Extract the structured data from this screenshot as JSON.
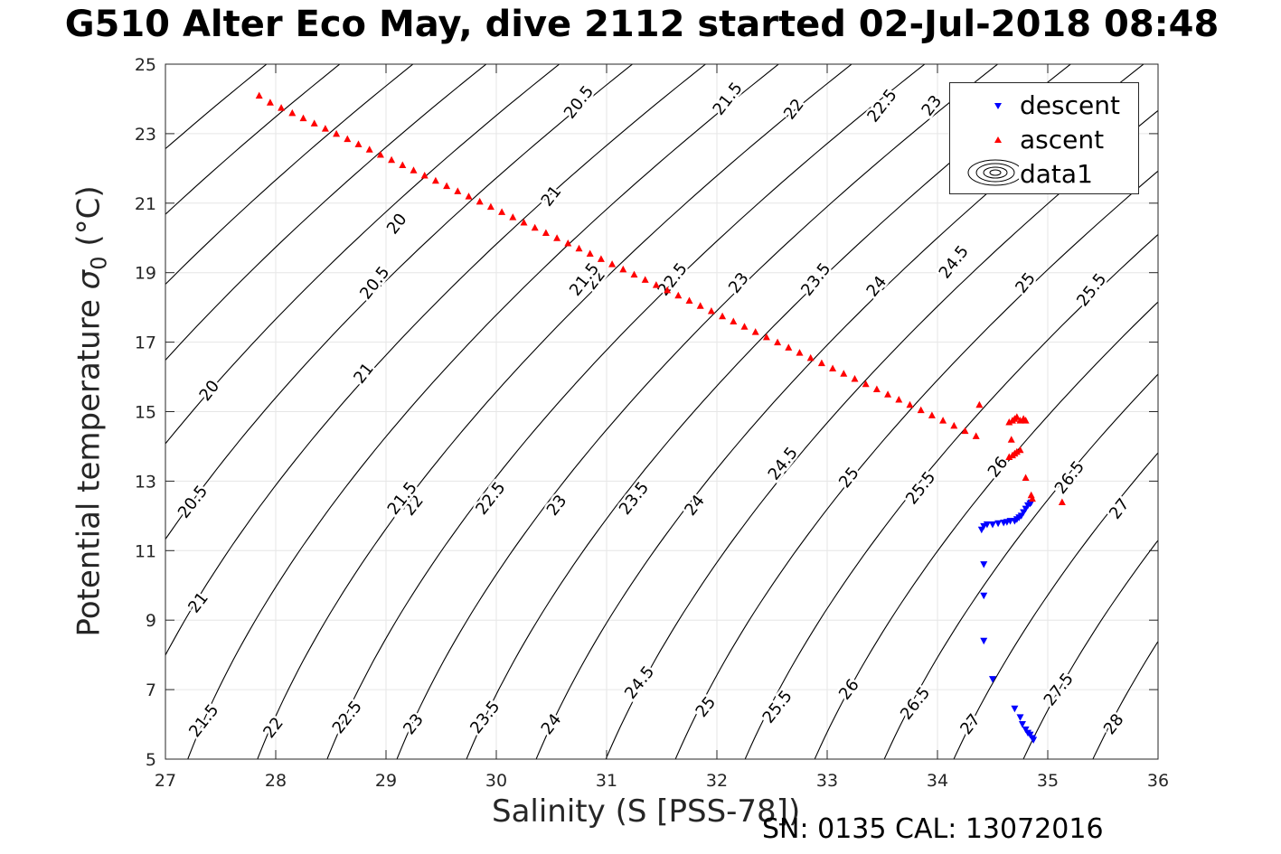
{
  "title": "G510 Alter Eco May, dive 2112 started 02-Jul-2018 08:48",
  "footer": "SN: 0135  CAL: 13072016",
  "colors": {
    "descent": "#0000ff",
    "ascent": "#ff0000",
    "contour": "#000000",
    "grid": "#e6e6e6"
  },
  "chart_data": {
    "type": "scatter",
    "xlabel": "Salinity (S [PSS-78])",
    "ylabel": {
      "main": "Potential temperature ",
      "sigma": "σ",
      "sub": "0",
      "unit": " (°C)"
    },
    "xlim": [
      27,
      36
    ],
    "ylim": [
      5,
      25
    ],
    "xticks": [
      27,
      28,
      29,
      30,
      31,
      32,
      33,
      34,
      35,
      36
    ],
    "yticks": [
      5,
      7,
      9,
      11,
      13,
      15,
      17,
      19,
      21,
      23,
      25
    ],
    "grid": true,
    "legend_position": "top-right",
    "legend": [
      "descent",
      "ascent",
      "data1"
    ],
    "contour_levels": [
      "20",
      "20.5",
      "21",
      "21.5",
      "22",
      "22.5",
      "23",
      "23.5",
      "24",
      "24.5",
      "25",
      "25.5",
      "26",
      "26.5",
      "27",
      "27.5",
      "28"
    ],
    "contour_label_positions": {
      "20": [
        [
          27.4,
          15.6
        ],
        [
          29.1,
          20.4
        ]
      ],
      "20.5": [
        [
          27.25,
          12.4
        ],
        [
          28.9,
          18.7
        ],
        [
          30.75,
          23.9
        ]
      ],
      "21": [
        [
          27.3,
          9.5
        ],
        [
          28.8,
          16.1
        ],
        [
          30.5,
          21.2
        ]
      ],
      "21.5": [
        [
          27.35,
          6.1
        ],
        [
          29.15,
          12.5
        ],
        [
          30.8,
          18.8
        ],
        [
          32.1,
          24.0
        ]
      ],
      "22": [
        [
          27.98,
          5.9
        ],
        [
          29.25,
          12.3
        ],
        [
          30.9,
          18.8
        ],
        [
          32.7,
          23.7
        ]
      ],
      "22.5": [
        [
          28.65,
          6.2
        ],
        [
          29.95,
          12.5
        ],
        [
          31.6,
          18.8
        ],
        [
          33.5,
          23.8
        ]
      ],
      "23": [
        [
          29.25,
          6.0
        ],
        [
          30.55,
          12.3
        ],
        [
          32.2,
          18.7
        ],
        [
          33.95,
          23.8
        ]
      ],
      "23.5": [
        [
          29.9,
          6.2
        ],
        [
          31.25,
          12.5
        ],
        [
          32.9,
          18.8
        ]
      ],
      "24": [
        [
          30.5,
          6.0
        ],
        [
          31.8,
          12.3
        ],
        [
          33.45,
          18.6
        ]
      ],
      "24.5": [
        [
          31.3,
          7.2
        ],
        [
          32.6,
          13.5
        ],
        [
          34.15,
          19.3
        ]
      ],
      "25": [
        [
          31.9,
          6.5
        ],
        [
          33.2,
          13.1
        ],
        [
          34.8,
          18.7
        ]
      ],
      "25.5": [
        [
          32.55,
          6.5
        ],
        [
          33.85,
          12.8
        ],
        [
          35.4,
          18.5
        ]
      ],
      "26": [
        [
          33.2,
          7.0
        ],
        [
          34.55,
          13.4
        ]
      ],
      "26.5": [
        [
          33.8,
          6.6
        ],
        [
          35.2,
          13.1
        ]
      ],
      "27": [
        [
          34.3,
          6.0
        ],
        [
          35.65,
          12.2
        ]
      ],
      "27.5": [
        [
          35.1,
          7.0
        ]
      ],
      "28": [
        [
          35.6,
          6.0
        ]
      ]
    },
    "series": [
      {
        "name": "descent",
        "marker": "triangle-down",
        "x": [
          34.4,
          34.42,
          34.45,
          34.5,
          34.55,
          34.6,
          34.63,
          34.66,
          34.7,
          34.72,
          34.74,
          34.76,
          34.78,
          34.8,
          34.82,
          34.84,
          34.85,
          34.42,
          34.42,
          34.42,
          34.5,
          34.7,
          34.75,
          34.77,
          34.8,
          34.82,
          34.84,
          34.86,
          34.87
        ],
        "y": [
          11.6,
          11.7,
          11.75,
          11.75,
          11.78,
          11.8,
          11.82,
          11.85,
          11.85,
          11.9,
          11.95,
          12.0,
          12.1,
          12.2,
          12.3,
          12.35,
          12.38,
          10.6,
          9.7,
          8.4,
          7.3,
          6.45,
          6.2,
          6.0,
          5.85,
          5.75,
          5.7,
          5.6,
          5.55
        ]
      },
      {
        "name": "ascent",
        "marker": "triangle-up",
        "x": [
          27.85,
          27.95,
          28.05,
          28.15,
          28.25,
          28.35,
          28.45,
          28.55,
          28.65,
          28.75,
          28.85,
          28.95,
          29.05,
          29.15,
          29.25,
          29.35,
          29.45,
          29.55,
          29.65,
          29.75,
          29.85,
          29.95,
          30.05,
          30.15,
          30.25,
          30.35,
          30.45,
          30.55,
          30.65,
          30.75,
          30.85,
          30.95,
          31.05,
          31.15,
          31.25,
          31.35,
          31.45,
          31.55,
          31.65,
          31.75,
          31.85,
          31.95,
          32.05,
          32.15,
          32.25,
          32.35,
          32.45,
          32.55,
          32.65,
          32.75,
          32.85,
          32.95,
          33.05,
          33.15,
          33.25,
          33.35,
          33.45,
          33.55,
          33.65,
          33.75,
          33.85,
          33.95,
          34.05,
          34.15,
          34.25,
          34.35,
          34.38,
          34.65,
          34.68,
          34.7,
          34.72,
          34.75,
          34.78,
          34.8,
          34.67,
          34.65,
          34.68,
          34.7,
          34.72,
          34.75,
          34.8,
          34.85,
          34.86,
          35.13
        ],
        "y": [
          24.1,
          23.9,
          23.75,
          23.6,
          23.45,
          23.3,
          23.15,
          23.0,
          22.85,
          22.7,
          22.55,
          22.4,
          22.25,
          22.1,
          21.95,
          21.8,
          21.65,
          21.5,
          21.35,
          21.2,
          21.05,
          20.9,
          20.75,
          20.6,
          20.45,
          20.3,
          20.15,
          20.0,
          19.85,
          19.7,
          19.55,
          19.4,
          19.25,
          19.1,
          18.95,
          18.8,
          18.65,
          18.5,
          18.35,
          18.2,
          18.05,
          17.9,
          17.75,
          17.6,
          17.45,
          17.3,
          17.15,
          17.0,
          16.85,
          16.7,
          16.55,
          16.4,
          16.25,
          16.1,
          15.95,
          15.8,
          15.65,
          15.5,
          15.35,
          15.2,
          15.05,
          14.9,
          14.75,
          14.6,
          14.45,
          14.3,
          15.2,
          14.7,
          14.75,
          14.8,
          14.85,
          14.75,
          14.8,
          14.75,
          14.2,
          13.7,
          13.75,
          13.8,
          13.85,
          13.9,
          13.1,
          12.6,
          12.5,
          12.4
        ]
      }
    ]
  }
}
